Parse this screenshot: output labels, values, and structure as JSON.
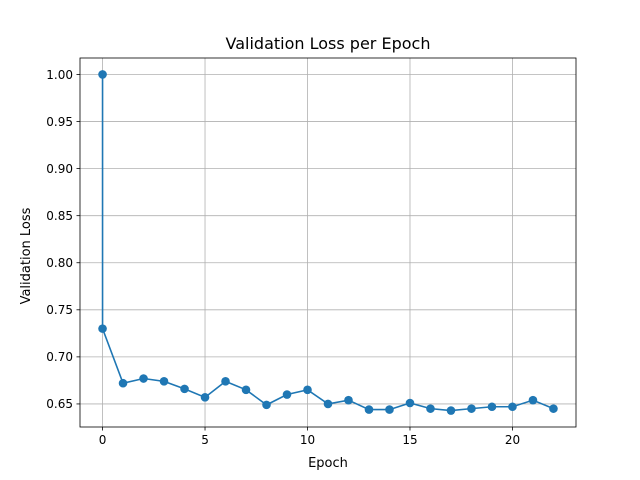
{
  "chart_data": {
    "type": "line",
    "title": "Validation Loss per Epoch",
    "xlabel": "Epoch",
    "ylabel": "Validation Loss",
    "xlim": [
      -1.1,
      23.1
    ],
    "ylim": [
      0.6255,
      1.0175
    ],
    "xticks": [
      0,
      5,
      10,
      15,
      20
    ],
    "yticks": [
      0.65,
      0.7,
      0.75,
      0.8,
      0.85,
      0.9,
      0.95,
      1.0
    ],
    "grid": true,
    "marker": "circle",
    "series": [
      {
        "color": "#1f77b4",
        "x": [
          0,
          0,
          1,
          2,
          3,
          4,
          5,
          6,
          7,
          8,
          9,
          10,
          11,
          12,
          13,
          14,
          15,
          16,
          17,
          18,
          19,
          20,
          21,
          22
        ],
        "y": [
          1.0,
          0.73,
          0.672,
          0.677,
          0.674,
          0.666,
          0.657,
          0.674,
          0.665,
          0.649,
          0.66,
          0.665,
          0.65,
          0.654,
          0.644,
          0.644,
          0.651,
          0.645,
          0.643,
          0.645,
          0.647,
          0.647,
          0.654,
          0.645
        ]
      }
    ]
  }
}
